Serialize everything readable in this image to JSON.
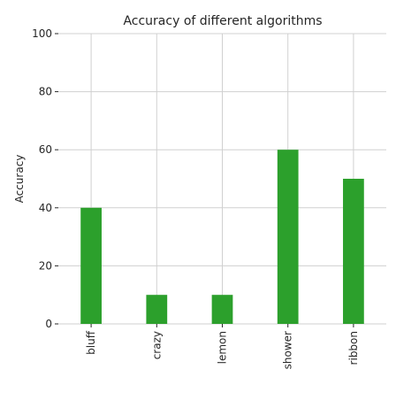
{
  "chart_data": {
    "type": "bar",
    "title": "Accuracy of different algorithms",
    "xlabel": "",
    "ylabel": "Accuracy",
    "categories": [
      "bluff",
      "crazy",
      "lemon",
      "shower",
      "ribbon"
    ],
    "values": [
      40,
      10,
      10,
      60,
      50
    ],
    "ylim": [
      0,
      100
    ],
    "yticks": [
      0,
      20,
      40,
      60,
      80,
      100
    ],
    "grid": true,
    "bar_color": "#2ca02c",
    "grid_color": "#d0d0d0"
  }
}
